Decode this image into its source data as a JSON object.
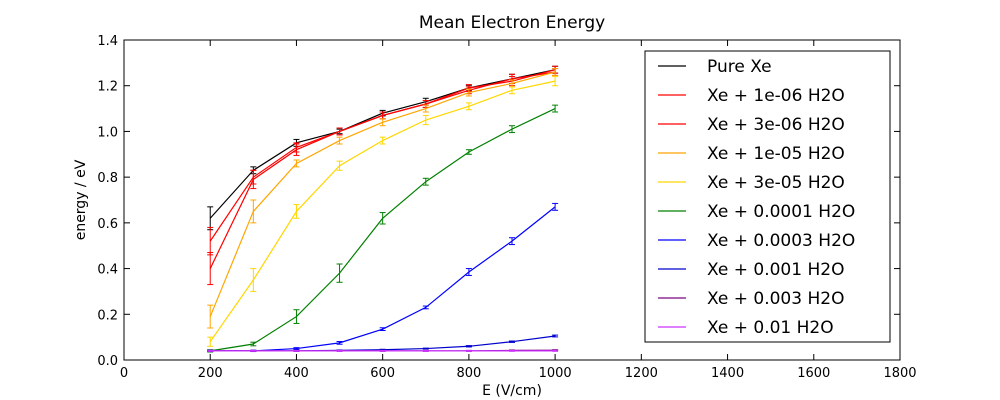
{
  "chart_data": {
    "type": "line",
    "title": "Mean Electron Energy",
    "xlabel": "E (V/cm)",
    "ylabel": "energy / eV",
    "xlim": [
      0,
      1800
    ],
    "ylim": [
      0.0,
      1.4
    ],
    "xticks": [
      0,
      200,
      400,
      600,
      800,
      1000,
      1200,
      1400,
      1600,
      1800
    ],
    "yticks": [
      0.0,
      0.2,
      0.4,
      0.6,
      0.8,
      1.0,
      1.2,
      1.4
    ],
    "xtick_labels": [
      "0",
      "200",
      "400",
      "600",
      "800",
      "1000",
      "1200",
      "1400",
      "1600",
      "1800"
    ],
    "ytick_labels": [
      "0.0",
      "0.2",
      "0.4",
      "0.6",
      "0.8",
      "1.0",
      "1.2",
      "1.4"
    ],
    "grid": false,
    "legend_position": "top-right",
    "x": [
      200,
      300,
      400,
      500,
      600,
      700,
      800,
      900,
      1000
    ],
    "series": [
      {
        "name": "Pure Xe",
        "color": "#000000",
        "values": [
          0.62,
          0.83,
          0.95,
          1.0,
          1.08,
          1.13,
          1.19,
          1.23,
          1.27
        ],
        "errors": [
          0.05,
          0.015,
          0.015,
          0.01,
          0.012,
          0.015,
          0.012,
          0.02,
          0.015
        ]
      },
      {
        "name": "Xe + 1e-06 H2O",
        "color": "#ff0000",
        "values": [
          0.52,
          0.8,
          0.93,
          1.0,
          1.07,
          1.12,
          1.19,
          1.22,
          1.27
        ],
        "errors": [
          0.06,
          0.03,
          0.02,
          0.015,
          0.015,
          0.015,
          0.015,
          0.02,
          0.015
        ]
      },
      {
        "name": "Xe + 3e-06 H2O",
        "color": "#ff0000",
        "values": [
          0.4,
          0.79,
          0.92,
          1.0,
          1.07,
          1.12,
          1.18,
          1.23,
          1.26
        ],
        "errors": [
          0.07,
          0.04,
          0.025,
          0.015,
          0.015,
          0.015,
          0.015,
          0.02,
          0.015
        ]
      },
      {
        "name": "Xe + 1e-05 H2O",
        "color": "#ffa500",
        "values": [
          0.19,
          0.65,
          0.86,
          0.96,
          1.04,
          1.1,
          1.17,
          1.21,
          1.26
        ],
        "errors": [
          0.05,
          0.05,
          0.015,
          0.015,
          0.015,
          0.015,
          0.015,
          0.015,
          0.015
        ]
      },
      {
        "name": "Xe + 3e-05 H2O",
        "color": "#ffd700",
        "values": [
          0.08,
          0.35,
          0.65,
          0.85,
          0.96,
          1.05,
          1.11,
          1.18,
          1.22
        ],
        "errors": [
          0.02,
          0.05,
          0.03,
          0.02,
          0.015,
          0.02,
          0.015,
          0.015,
          0.02
        ]
      },
      {
        "name": "Xe + 0.0001 H2O",
        "color": "#008000",
        "values": [
          0.04,
          0.07,
          0.19,
          0.38,
          0.62,
          0.78,
          0.91,
          1.01,
          1.1
        ],
        "errors": [
          0.005,
          0.008,
          0.03,
          0.04,
          0.025,
          0.015,
          0.01,
          0.015,
          0.015
        ]
      },
      {
        "name": "Xe + 0.0003 H2O",
        "color": "#0000ff",
        "values": [
          0.04,
          0.04,
          0.05,
          0.075,
          0.135,
          0.23,
          0.385,
          0.52,
          0.67
        ],
        "errors": [
          0.003,
          0.003,
          0.004,
          0.006,
          0.006,
          0.006,
          0.015,
          0.015,
          0.015
        ]
      },
      {
        "name": "Xe + 0.001 H2O",
        "color": "#0000cd",
        "values": [
          0.04,
          0.04,
          0.04,
          0.042,
          0.045,
          0.05,
          0.06,
          0.08,
          0.105
        ],
        "errors": [
          0.002,
          0.002,
          0.002,
          0.002,
          0.002,
          0.002,
          0.003,
          0.003,
          0.004
        ]
      },
      {
        "name": "Xe + 0.003 H2O",
        "color": "#800080",
        "values": [
          0.04,
          0.04,
          0.04,
          0.04,
          0.04,
          0.04,
          0.04,
          0.042,
          0.043
        ],
        "errors": [
          0.002,
          0.002,
          0.002,
          0.002,
          0.002,
          0.002,
          0.002,
          0.002,
          0.002
        ]
      },
      {
        "name": "Xe + 0.01 H2O",
        "color": "#cc33ff",
        "values": [
          0.04,
          0.04,
          0.04,
          0.04,
          0.04,
          0.04,
          0.04,
          0.04,
          0.04
        ],
        "errors": [
          0.002,
          0.002,
          0.002,
          0.002,
          0.002,
          0.002,
          0.002,
          0.002,
          0.002
        ]
      }
    ]
  }
}
